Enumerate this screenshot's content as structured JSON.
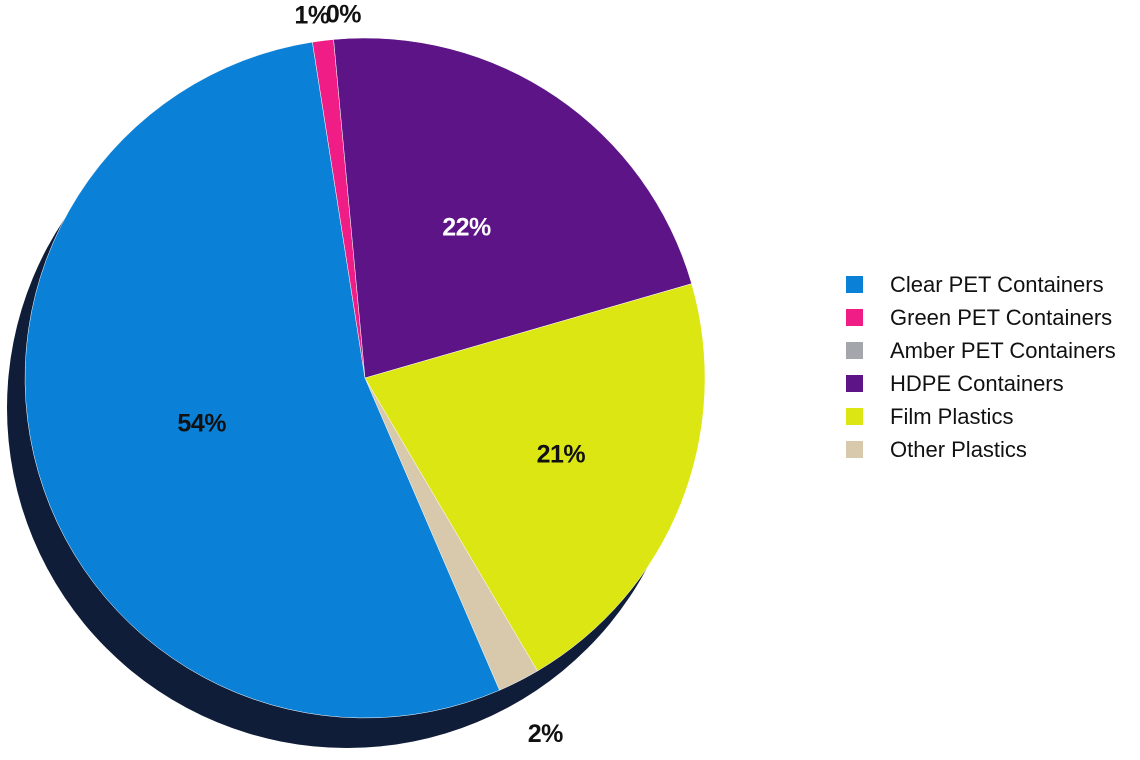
{
  "chart_data": {
    "type": "pie",
    "style": "3d-extruded",
    "slices": [
      {
        "name": "Clear PET Containers",
        "value": 54,
        "label": "54%",
        "color": "#0a80d6"
      },
      {
        "name": "Green PET Containers",
        "value": 1,
        "label": "1%",
        "color": "#ef1d85"
      },
      {
        "name": "Amber PET Containers",
        "value": 0,
        "label": "0%",
        "color": "#a3a6ab"
      },
      {
        "name": "HDPE Containers",
        "value": 22,
        "label": "22%",
        "color": "#5c1486"
      },
      {
        "name": "Film Plastics",
        "value": 21,
        "label": "21%",
        "color": "#dbe613"
      },
      {
        "name": "Other Plastics",
        "value": 2,
        "label": "2%",
        "color": "#d8c9ad"
      }
    ],
    "shadow_color": "#0f1d38",
    "legend_position": "right",
    "title": ""
  }
}
